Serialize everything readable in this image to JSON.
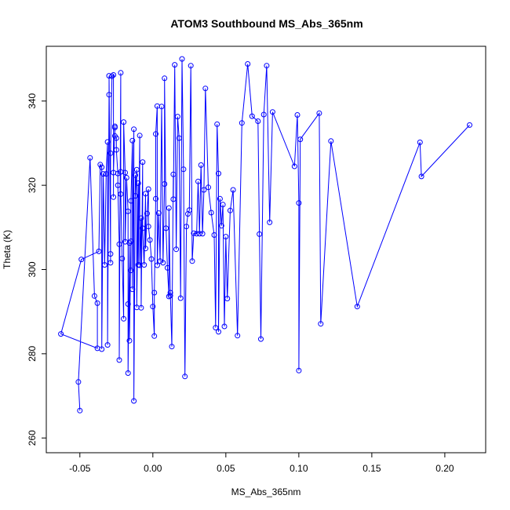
{
  "chart_data": {
    "type": "line",
    "title": "ATOM3 Southbound MS_Abs_365nm",
    "xlabel": "MS_Abs_365nm",
    "ylabel": "Theta (K)",
    "xlim": [
      -0.073,
      0.228
    ],
    "ylim": [
      256.5,
      353
    ],
    "x_ticks": [
      -0.05,
      0.0,
      0.05,
      0.1,
      0.15,
      0.2
    ],
    "x_tick_labels": [
      "-0.05",
      "0.00",
      "0.05",
      "0.10",
      "0.15",
      "0.20"
    ],
    "y_ticks": [
      260,
      280,
      300,
      320,
      340
    ],
    "y_tick_labels": [
      "260",
      "280",
      "300",
      "320",
      "340"
    ],
    "grid": false,
    "series": [
      {
        "color": "#0000ff",
        "marker": "open-circle",
        "points": [
          [
            -0.05,
            266.5
          ],
          [
            -0.051,
            273.3
          ],
          [
            -0.043,
            326.5
          ],
          [
            -0.04,
            293.7
          ],
          [
            -0.038,
            292.0
          ],
          [
            -0.038,
            281.3
          ],
          [
            -0.063,
            284.7
          ],
          [
            -0.049,
            302.4
          ],
          [
            -0.037,
            304.3
          ],
          [
            -0.036,
            324.9
          ],
          [
            -0.035,
            324.3
          ],
          [
            -0.035,
            281.1
          ],
          [
            -0.034,
            322.7
          ],
          [
            -0.033,
            301.1
          ],
          [
            -0.032,
            322.7
          ],
          [
            -0.031,
            330.3
          ],
          [
            -0.031,
            282.1
          ],
          [
            -0.03,
            341.5
          ],
          [
            -0.03,
            346.0
          ],
          [
            -0.029,
            303.7
          ],
          [
            -0.029,
            301.6
          ],
          [
            -0.029,
            327.6
          ],
          [
            -0.028,
            345.9
          ],
          [
            -0.027,
            346.2
          ],
          [
            -0.027,
            317.2
          ],
          [
            -0.027,
            323.0
          ],
          [
            -0.026,
            333.7
          ],
          [
            -0.026,
            334.0
          ],
          [
            -0.026,
            331.7
          ],
          [
            -0.025,
            331.2
          ],
          [
            -0.025,
            328.4
          ],
          [
            -0.024,
            322.8
          ],
          [
            -0.024,
            320.0
          ],
          [
            -0.023,
            306.0
          ],
          [
            -0.023,
            278.5
          ],
          [
            -0.022,
            346.7
          ],
          [
            -0.022,
            323.2
          ],
          [
            -0.022,
            317.9
          ],
          [
            -0.021,
            302.6
          ],
          [
            -0.02,
            288.3
          ],
          [
            -0.02,
            335.0
          ],
          [
            -0.019,
            323.0
          ],
          [
            -0.019,
            306.6
          ],
          [
            -0.018,
            321.8
          ],
          [
            -0.017,
            313.8
          ],
          [
            -0.017,
            291.8
          ],
          [
            -0.017,
            275.4
          ],
          [
            -0.016,
            306.3
          ],
          [
            -0.016,
            283.1
          ],
          [
            -0.015,
            306.7
          ],
          [
            -0.015,
            299.8
          ],
          [
            -0.015,
            316.3
          ],
          [
            -0.014,
            330.6
          ],
          [
            -0.014,
            295.3
          ],
          [
            -0.013,
            333.3
          ],
          [
            -0.013,
            268.8
          ],
          [
            -0.012,
            322.4
          ],
          [
            -0.012,
            317.5
          ],
          [
            -0.011,
            323.7
          ],
          [
            -0.011,
            291.0
          ],
          [
            -0.01,
            320.5
          ],
          [
            -0.01,
            301.1
          ],
          [
            -0.009,
            331.8
          ],
          [
            -0.009,
            301.0
          ],
          [
            -0.008,
            312.2
          ],
          [
            -0.008,
            290.9
          ],
          [
            -0.007,
            325.5
          ],
          [
            -0.007,
            309.8
          ],
          [
            -0.006,
            301.1
          ],
          [
            -0.005,
            318.0
          ],
          [
            -0.005,
            305.0
          ],
          [
            -0.004,
            313.3
          ],
          [
            -0.003,
            319.1
          ],
          [
            -0.003,
            310.2
          ],
          [
            -0.002,
            307.0
          ],
          [
            -0.001,
            302.5
          ],
          [
            0.0,
            291.2
          ],
          [
            0.001,
            284.2
          ],
          [
            0.001,
            294.5
          ],
          [
            0.002,
            316.8
          ],
          [
            0.002,
            332.2
          ],
          [
            0.003,
            338.8
          ],
          [
            0.003,
            301.0
          ],
          [
            0.004,
            313.4
          ],
          [
            0.005,
            302.0
          ],
          [
            0.006,
            338.7
          ],
          [
            0.007,
            301.6
          ],
          [
            0.008,
            320.3
          ],
          [
            0.008,
            345.4
          ],
          [
            0.009,
            309.8
          ],
          [
            0.01,
            300.4
          ],
          [
            0.011,
            293.6
          ],
          [
            0.011,
            314.6
          ],
          [
            0.012,
            293.8
          ],
          [
            0.012,
            294.5
          ],
          [
            0.013,
            281.7
          ],
          [
            0.014,
            322.6
          ],
          [
            0.014,
            316.7
          ],
          [
            0.015,
            348.6
          ],
          [
            0.016,
            304.8
          ],
          [
            0.017,
            336.3
          ],
          [
            0.018,
            331.2
          ],
          [
            0.019,
            293.2
          ],
          [
            0.02,
            350.0
          ],
          [
            0.021,
            323.8
          ],
          [
            0.022,
            274.6
          ],
          [
            0.023,
            310.2
          ],
          [
            0.024,
            313.2
          ],
          [
            0.025,
            314.1
          ],
          [
            0.026,
            348.4
          ],
          [
            0.027,
            302.0
          ],
          [
            0.028,
            308.6
          ],
          [
            0.03,
            308.5
          ],
          [
            0.031,
            320.9
          ],
          [
            0.032,
            308.5
          ],
          [
            0.033,
            324.8
          ],
          [
            0.034,
            308.5
          ],
          [
            0.035,
            318.9
          ],
          [
            0.036,
            343.0
          ],
          [
            0.038,
            319.5
          ],
          [
            0.04,
            313.5
          ],
          [
            0.042,
            308.2
          ],
          [
            0.043,
            286.2
          ],
          [
            0.044,
            334.5
          ],
          [
            0.045,
            322.8
          ],
          [
            0.045,
            285.2
          ],
          [
            0.046,
            316.8
          ],
          [
            0.047,
            310.4
          ],
          [
            0.048,
            315.4
          ],
          [
            0.049,
            286.5
          ],
          [
            0.05,
            307.8
          ],
          [
            0.051,
            293.1
          ],
          [
            0.053,
            314.0
          ],
          [
            0.055,
            318.9
          ],
          [
            0.058,
            284.3
          ],
          [
            0.061,
            334.8
          ],
          [
            0.065,
            348.8
          ],
          [
            0.068,
            336.4
          ],
          [
            0.072,
            335.2
          ],
          [
            0.073,
            308.4
          ],
          [
            0.074,
            283.5
          ],
          [
            0.076,
            336.8
          ],
          [
            0.078,
            348.4
          ],
          [
            0.08,
            311.2
          ],
          [
            0.082,
            337.4
          ],
          [
            0.097,
            324.5
          ],
          [
            0.099,
            336.7
          ],
          [
            0.1,
            315.8
          ],
          [
            0.1,
            276.0
          ],
          [
            0.101,
            330.9
          ],
          [
            0.114,
            337.1
          ],
          [
            0.115,
            287.1
          ],
          [
            0.122,
            330.5
          ],
          [
            0.14,
            291.2
          ],
          [
            0.183,
            330.2
          ],
          [
            0.184,
            322.1
          ],
          [
            0.217,
            334.3
          ]
        ]
      }
    ]
  }
}
